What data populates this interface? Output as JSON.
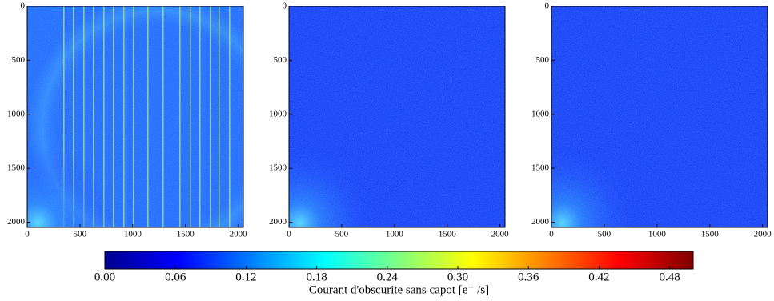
{
  "chart_data": [
    {
      "type": "heatmap",
      "colormap": "jet",
      "xlim": [
        0,
        2048
      ],
      "ylim": [
        2048,
        0
      ],
      "xticks": [
        0,
        500,
        1000,
        1500,
        2000
      ],
      "yticks": [
        0,
        500,
        1000,
        1500,
        2000
      ]
    },
    {
      "type": "heatmap",
      "colormap": "jet",
      "xlim": [
        0,
        2048
      ],
      "ylim": [
        2048,
        0
      ],
      "xticks": [
        0,
        500,
        1000,
        1500,
        2000
      ],
      "yticks": [
        0,
        500,
        1000,
        1500,
        2000
      ]
    },
    {
      "type": "heatmap",
      "colormap": "jet",
      "xlim": [
        0,
        2048
      ],
      "ylim": [
        2048,
        0
      ],
      "xticks": [
        0,
        500,
        1000,
        1500,
        2000
      ],
      "yticks": [
        0,
        500,
        1000,
        1500,
        2000
      ]
    },
    {
      "type": "colorbar",
      "colormap": "jet",
      "xlim": [
        0,
        0.5
      ],
      "label": "Courant d'obscurite sans capot [e⁻ /s]",
      "xticks": [
        {
          "value": 0,
          "label": "0.00"
        },
        {
          "value": 0.06,
          "label": "0.06"
        },
        {
          "value": 0.12,
          "label": "0.12"
        },
        {
          "value": 0.18,
          "label": "0.18"
        },
        {
          "value": 0.24,
          "label": "0.24"
        },
        {
          "value": 0.3,
          "label": "0.30"
        },
        {
          "value": 0.36,
          "label": "0.36"
        },
        {
          "value": 0.42,
          "label": "0.42"
        },
        {
          "value": 0.48,
          "label": "0.48"
        }
      ]
    }
  ]
}
